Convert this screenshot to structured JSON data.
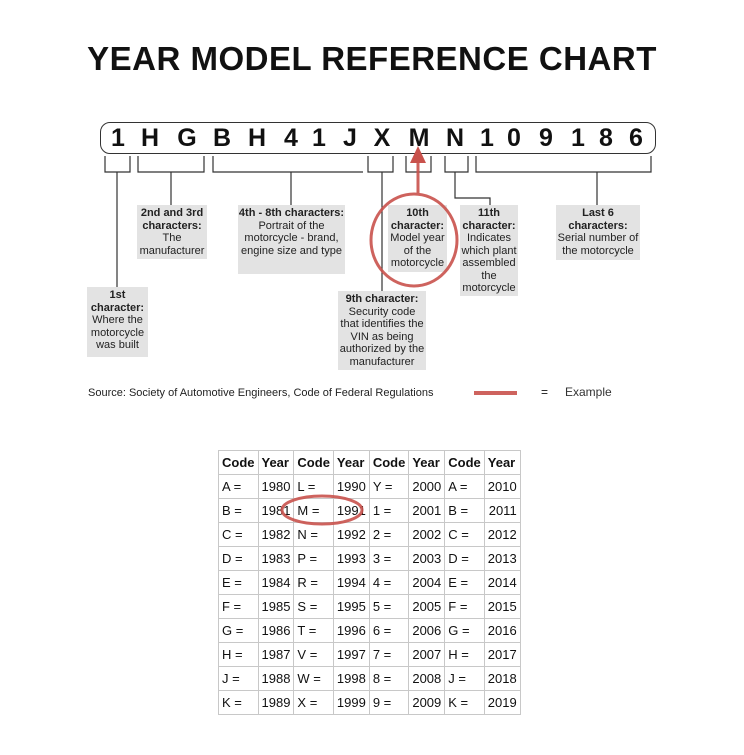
{
  "title": "YEAR MODEL REFERENCE CHART",
  "vin": [
    "1",
    "H",
    "G",
    "B",
    "H",
    "4",
    "1",
    "J",
    "X",
    "M",
    "N",
    "1",
    "0",
    "9",
    "1",
    "8",
    "6"
  ],
  "labels": {
    "first": {
      "head": "1st character:",
      "body": "Where the motorcycle was built"
    },
    "second": {
      "head": "2nd and 3rd characters:",
      "body": "The manufacturer"
    },
    "fourth": {
      "head": "4th - 8th characters:",
      "body": "Portrait of the motorcycle - brand, engine size and type"
    },
    "ninth": {
      "head": "9th character:",
      "body": "Security code that identifies the VIN as being authorized by the manufacturer"
    },
    "tenth": {
      "head": "10th character:",
      "body": "Model year of the motorcycle"
    },
    "eleventh": {
      "head": "11th character:",
      "body": "Indicates which plant assembled the motorcycle"
    },
    "last": {
      "head": "Last 6 characters:",
      "body": "Serial number of the motorcycle"
    }
  },
  "source": "Source:  Society of Automotive Engineers, Code of Federal Regulations",
  "legend": {
    "equals": "=",
    "label": "Example",
    "color": "#c9524c"
  },
  "table": {
    "headers": [
      "Code",
      "Year",
      "Code",
      "Year",
      "Code",
      "Year",
      "Code",
      "Year"
    ],
    "rows": [
      [
        "A =",
        "1980",
        "L =",
        "1990",
        "Y =",
        "2000",
        "A =",
        "2010"
      ],
      [
        "B =",
        "1981",
        "M =",
        "1991",
        "1 =",
        "2001",
        "B =",
        "2011"
      ],
      [
        "C =",
        "1982",
        "N =",
        "1992",
        "2 =",
        "2002",
        "C =",
        "2012"
      ],
      [
        "D =",
        "1983",
        "P =",
        "1993",
        "3 =",
        "2003",
        "D =",
        "2013"
      ],
      [
        "E =",
        "1984",
        "R =",
        "1994",
        "4 =",
        "2004",
        "E =",
        "2014"
      ],
      [
        "F =",
        "1985",
        "S =",
        "1995",
        "5 =",
        "2005",
        "F =",
        "2015"
      ],
      [
        "G =",
        "1986",
        "T =",
        "1996",
        "6 =",
        "2006",
        "G =",
        "2016"
      ],
      [
        "H =",
        "1987",
        "V =",
        "1997",
        "7 =",
        "2007",
        "H =",
        "2017"
      ],
      [
        "J =",
        "1988",
        "W =",
        "1998",
        "8 =",
        "2008",
        "J =",
        "2018"
      ],
      [
        "K =",
        "1989",
        "X =",
        "1999",
        "9 =",
        "2009",
        "K =",
        "2019"
      ]
    ]
  }
}
